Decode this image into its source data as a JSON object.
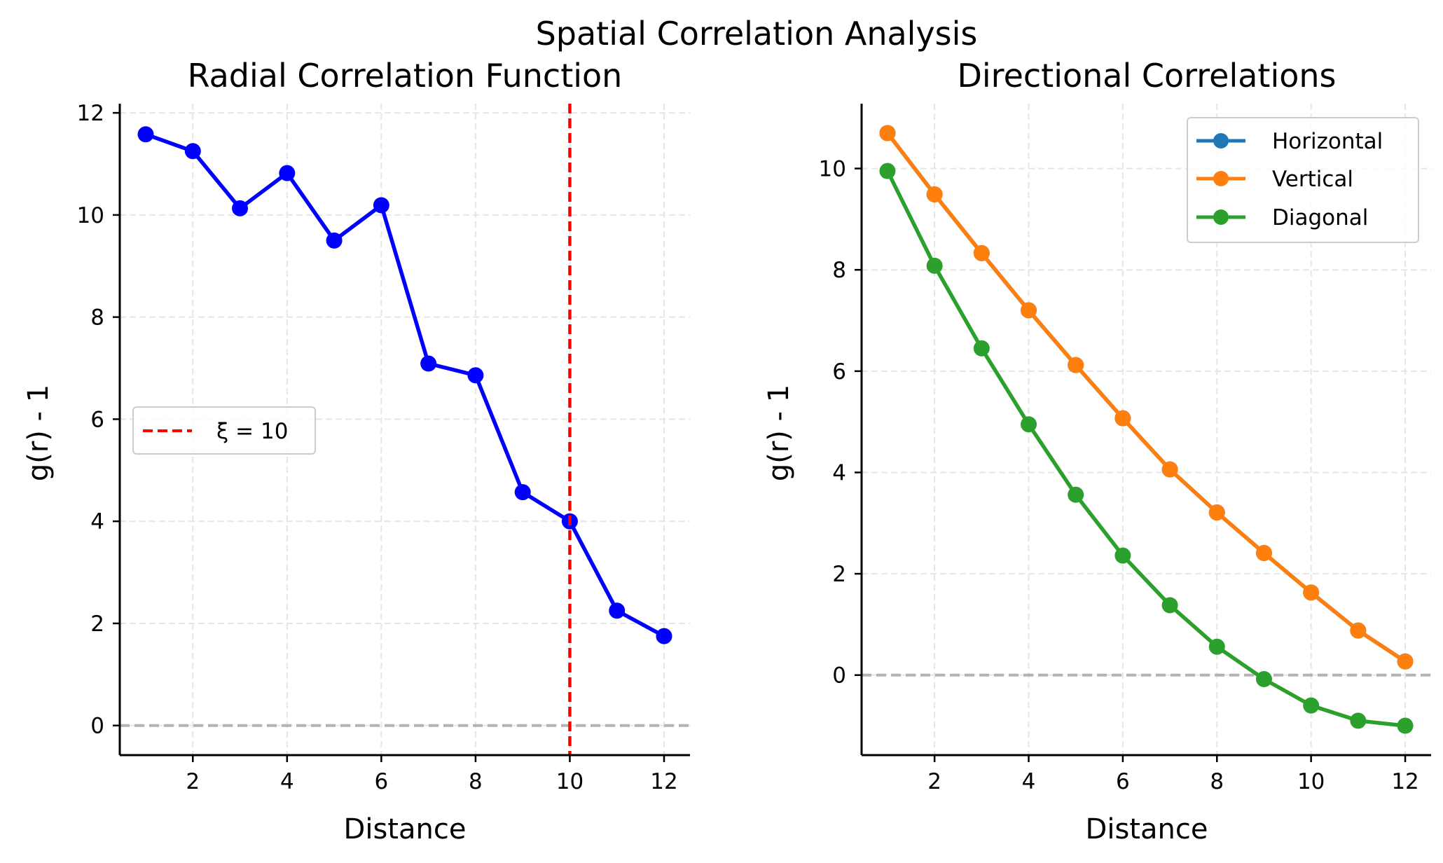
{
  "figure": {
    "suptitle": "Spatial Correlation Analysis"
  },
  "colors": {
    "radial": "#0000ff",
    "xi_line": "#ff0000",
    "zero_line": "#b3b3b3",
    "horizontal": "#1f77b4",
    "vertical": "#ff7f0e",
    "diagonal": "#2ca02c",
    "grid": "#e6e6e6"
  },
  "chart_data": [
    {
      "type": "line",
      "title": "Radial Correlation Function",
      "xlabel": "Distance",
      "ylabel": "g(r) - 1",
      "xlim": [
        0.45,
        12.55
      ],
      "ylim": [
        -0.58,
        12.18
      ],
      "xticks": [
        2,
        4,
        6,
        8,
        10,
        12
      ],
      "yticks": [
        0,
        2,
        4,
        6,
        8,
        10,
        12
      ],
      "grid": true,
      "legend_position": "center-left",
      "series": [
        {
          "key": "radial",
          "x": [
            1,
            2,
            3,
            4,
            5,
            6,
            7,
            8,
            9,
            10,
            11,
            12
          ],
          "values": [
            11.58,
            11.25,
            10.13,
            10.82,
            9.5,
            10.19,
            7.09,
            6.86,
            4.57,
            4.0,
            2.25,
            1.75
          ]
        }
      ],
      "annotations": [
        {
          "type": "vline",
          "x": 10,
          "label": "ξ = 10"
        },
        {
          "type": "hline",
          "y": 0
        }
      ]
    },
    {
      "type": "line",
      "title": "Directional Correlations",
      "xlabel": "Distance",
      "ylabel": "g(r) - 1",
      "xlim": [
        0.45,
        12.55
      ],
      "ylim": [
        -1.58,
        11.28
      ],
      "xticks": [
        2,
        4,
        6,
        8,
        10,
        12
      ],
      "yticks": [
        0,
        2,
        4,
        6,
        8,
        10
      ],
      "grid": true,
      "legend_position": "top-right",
      "series": [
        {
          "name": "Horizontal",
          "x": [
            1,
            2,
            3,
            4,
            5,
            6,
            7,
            8,
            9,
            10,
            11,
            12
          ],
          "values": [
            10.7,
            9.49,
            8.33,
            7.2,
            6.12,
            5.07,
            4.06,
            3.21,
            2.41,
            1.63,
            0.88,
            0.27
          ]
        },
        {
          "name": "Vertical",
          "x": [
            1,
            2,
            3,
            4,
            5,
            6,
            7,
            8,
            9,
            10,
            11,
            12
          ],
          "values": [
            10.7,
            9.49,
            8.33,
            7.2,
            6.12,
            5.07,
            4.06,
            3.21,
            2.41,
            1.63,
            0.88,
            0.27
          ]
        },
        {
          "name": "Diagonal",
          "x": [
            1,
            2,
            3,
            4,
            5,
            6,
            7,
            8,
            9,
            10,
            11,
            12
          ],
          "values": [
            9.95,
            8.08,
            6.45,
            4.95,
            3.56,
            2.36,
            1.38,
            0.56,
            -0.08,
            -0.6,
            -0.9,
            -1.0
          ]
        }
      ],
      "annotations": [
        {
          "type": "hline",
          "y": 0
        }
      ]
    }
  ]
}
